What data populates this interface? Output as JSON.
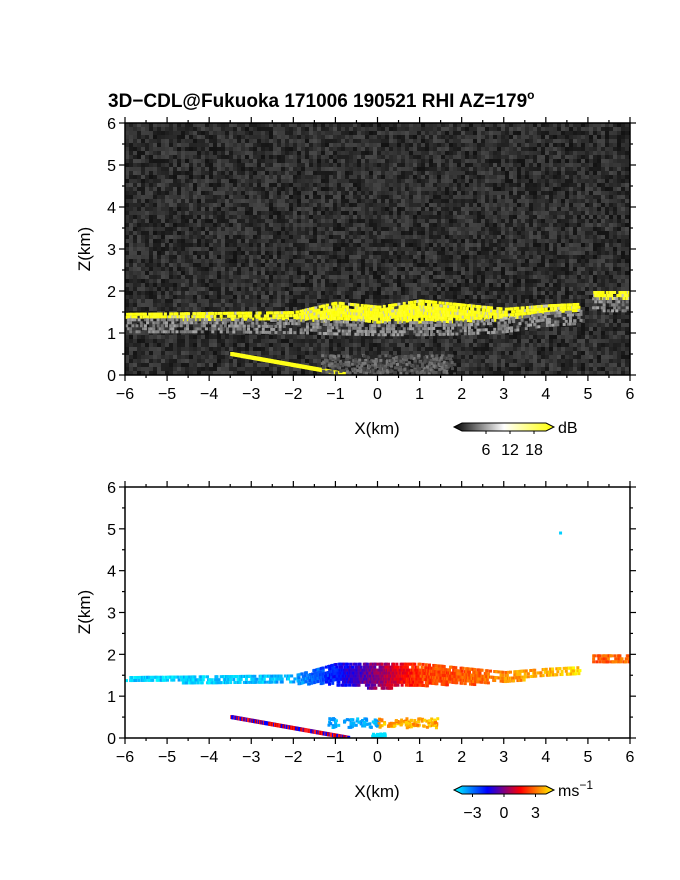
{
  "figure": {
    "title_main": "3D−CDL@Fukuoka 171006 190521 RHI AZ=179",
    "title_sup": "o"
  },
  "chart_data": [
    {
      "type": "heatmap",
      "name": "snr",
      "xlabel": "X(km)",
      "ylabel": "Z(km)",
      "xlim": [
        -6,
        6
      ],
      "ylim": [
        0,
        6
      ],
      "xticks": [
        -6,
        -5,
        -4,
        -3,
        -2,
        -1,
        0,
        1,
        2,
        3,
        4,
        5,
        6
      ],
      "yticks": [
        0,
        1,
        2,
        3,
        4,
        5,
        6
      ],
      "colorbar": {
        "unit": "dB",
        "ticks": [
          "6",
          "12",
          "18"
        ],
        "range": [
          0,
          21
        ],
        "colors": [
          "#000000",
          "#ffffff",
          "#ffff00"
        ]
      },
      "layers": [
        {
          "feature": "aerosol layer",
          "x": [
            -6,
            -4,
            -2,
            -1,
            0,
            1,
            2,
            3,
            4,
            4.8
          ],
          "z_bottom": [
            1.35,
            1.35,
            1.33,
            1.3,
            1.28,
            1.28,
            1.3,
            1.35,
            1.5,
            1.55
          ],
          "z_top": [
            1.48,
            1.5,
            1.52,
            1.75,
            1.65,
            1.8,
            1.7,
            1.6,
            1.68,
            1.72
          ],
          "value": 20
        },
        {
          "feature": "upper layer segment",
          "x": [
            5.1,
            6
          ],
          "z_bottom": [
            1.85,
            1.85
          ],
          "z_top": [
            2.0,
            2.0
          ],
          "value": 20
        },
        {
          "feature": "surface echo",
          "x": [
            -3.5,
            -0.7
          ],
          "z": [
            0.5,
            0.0
          ],
          "value": 20
        }
      ]
    },
    {
      "type": "heatmap",
      "name": "doppler velocity",
      "xlabel": "X(km)",
      "ylabel": "Z(km)",
      "xlim": [
        -6,
        6
      ],
      "ylim": [
        0,
        6
      ],
      "xticks": [
        -6,
        -5,
        -4,
        -3,
        -2,
        -1,
        0,
        1,
        2,
        3,
        4,
        5,
        6
      ],
      "yticks": [
        0,
        1,
        2,
        3,
        4,
        5,
        6
      ],
      "colorbar": {
        "unit": "ms",
        "unit_sup": "−1",
        "ticks": [
          "−3",
          "0",
          "3"
        ],
        "range": [
          -4,
          4
        ],
        "colors": [
          "#00ffff",
          "#0000ff",
          "#ff0000",
          "#ffff00"
        ]
      },
      "layers": [
        {
          "feature": "aerosol layer",
          "x": [
            -6,
            -4,
            -2,
            -1,
            0,
            1,
            2,
            3,
            4,
            4.8
          ],
          "z_bottom": [
            1.35,
            1.35,
            1.33,
            1.3,
            1.2,
            1.28,
            1.3,
            1.35,
            1.5,
            1.55
          ],
          "z_top": [
            1.48,
            1.5,
            1.52,
            1.8,
            1.8,
            1.8,
            1.7,
            1.6,
            1.68,
            1.72
          ],
          "velocity": [
            -3.5,
            -3.5,
            -3.2,
            -1.5,
            0.2,
            2.0,
            2.2,
            2.8,
            3.2,
            3.6
          ]
        },
        {
          "feature": "upper layer segment",
          "x": [
            5.1,
            6
          ],
          "z_bottom": [
            1.85,
            1.85
          ],
          "z_top": [
            2.0,
            2.0
          ],
          "velocity": [
            2.3,
            2.3
          ]
        },
        {
          "feature": "surface echo",
          "x": [
            -3.5,
            -0.7
          ],
          "z": [
            0.5,
            0.0
          ],
          "velocity": [
            1.0,
            1.0
          ]
        },
        {
          "feature": "isolated point",
          "x": [
            4.35
          ],
          "z": [
            4.9
          ],
          "velocity": [
            -3.5
          ]
        }
      ]
    }
  ]
}
